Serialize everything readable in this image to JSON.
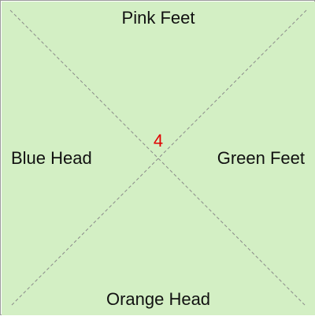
{
  "tile": {
    "number": "4",
    "edges": {
      "top": "Pink Feet",
      "right": "Green Feet",
      "bottom": "Orange Head",
      "left": "Blue Head"
    }
  },
  "colors": {
    "background": "#d3efc4",
    "border": "#9a9a9a",
    "diagonal": "#8a8a8a",
    "number": "#e00000",
    "label": "#111111"
  }
}
